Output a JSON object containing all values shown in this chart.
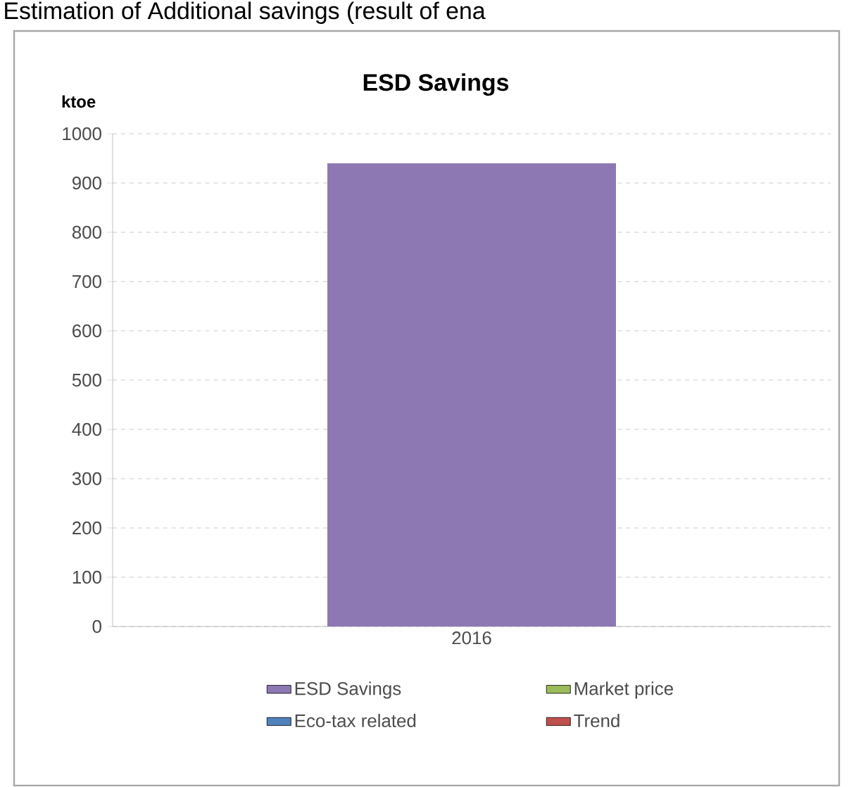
{
  "chart_data": {
    "type": "bar",
    "title": "ESD Savings",
    "ylabel": "ktoe",
    "annotations": [
      "Estimation of Additional savings (result of ena"
    ],
    "categories": [
      "2016"
    ],
    "stacked": true,
    "series": [
      {
        "name": "ESD Savings",
        "color": "#8e78b4",
        "values": [
          940
        ]
      },
      {
        "name": "Market price",
        "color": "#9bbb59",
        "values": [
          0
        ]
      },
      {
        "name": "Eco-tax related",
        "color": "#4f81bd",
        "values": [
          0
        ]
      },
      {
        "name": "Trend",
        "color": "#c0504d",
        "values": [
          0
        ]
      }
    ],
    "ylim": [
      0,
      1000
    ],
    "yticks": [
      0,
      100,
      200,
      300,
      400,
      500,
      600,
      700,
      800,
      900,
      1000
    ],
    "grid": "y",
    "legend": "bottom"
  }
}
